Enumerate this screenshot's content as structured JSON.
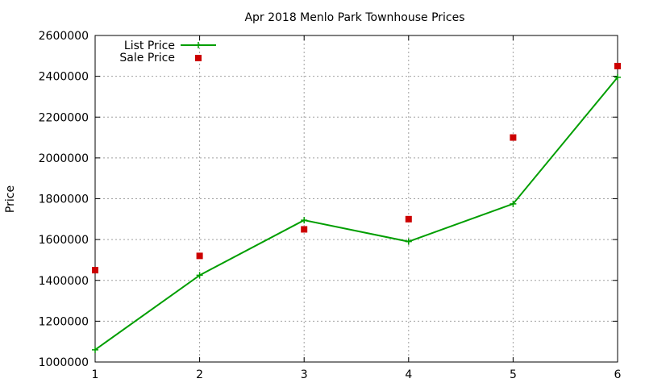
{
  "chart_data": {
    "type": "line",
    "title": "Apr 2018 Menlo Park Townhouse Prices",
    "xlabel": "",
    "ylabel": "Price",
    "x": [
      1,
      2,
      3,
      4,
      5,
      6
    ],
    "xlim": [
      1,
      6
    ],
    "ylim": [
      1000000,
      2600000
    ],
    "xticks": [
      "1",
      "2",
      "3",
      "4",
      "5",
      "6"
    ],
    "yticks": [
      1000000,
      1200000,
      1400000,
      1600000,
      1800000,
      2000000,
      2200000,
      2400000,
      2600000
    ],
    "ytick_labels": [
      "1000000",
      "1200000",
      "1400000",
      "1600000",
      "1800000",
      "2000000",
      "2200000",
      "2400000",
      "2600000"
    ],
    "grid": true,
    "legend_position": "top-left",
    "series": [
      {
        "name": "List Price",
        "style": "line+cross",
        "color": "#009e00",
        "values": [
          1060000,
          1425000,
          1695000,
          1590000,
          1775000,
          2395000
        ]
      },
      {
        "name": "Sale Price",
        "style": "square-marker",
        "color": "#cc0000",
        "values": [
          1450000,
          1520000,
          1650000,
          1700000,
          2100000,
          2450000
        ]
      }
    ]
  }
}
